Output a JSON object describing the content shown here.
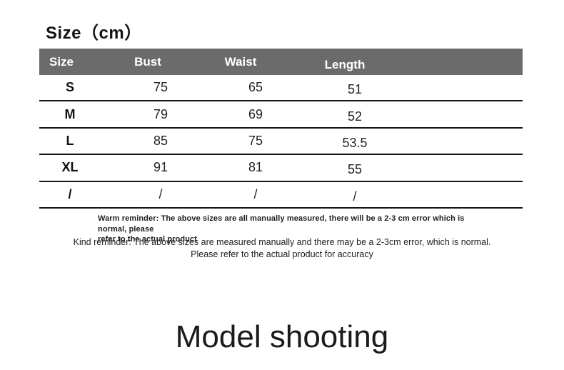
{
  "title": "Size（cm）",
  "table": {
    "header_bg": "#6b6b6b",
    "header_text_color": "#ffffff",
    "divider_color": "#151515",
    "columns": [
      "Size",
      "Bust",
      "Waist",
      "Length"
    ],
    "rows": [
      {
        "size": "S",
        "bust": "75",
        "waist": "65",
        "length": "51"
      },
      {
        "size": "M",
        "bust": "79",
        "waist": "69",
        "length": "52"
      },
      {
        "size": "L",
        "bust": "85",
        "waist": "75",
        "length": "53.5"
      },
      {
        "size": "XL",
        "bust": "91",
        "waist": "81",
        "length": "55"
      },
      {
        "size": "/",
        "bust": "/",
        "waist": "/",
        "length": "/"
      }
    ]
  },
  "notes": {
    "warm_line1": "Warm reminder: The above sizes are all manually measured, there will be a 2-3 cm error which is normal, please",
    "warm_line2": "refer to the actual product",
    "kind_line1": "Kind reminder: The above sizes are measured manually and there may be a 2-3cm error, which is normal.",
    "kind_line2": "Please refer to the actual product for accuracy"
  },
  "footer_heading": "Model shooting",
  "chart_data": {
    "type": "table",
    "title": "Size（cm）",
    "columns": [
      "Size",
      "Bust",
      "Waist",
      "Length"
    ],
    "rows": [
      [
        "S",
        75,
        65,
        51
      ],
      [
        "M",
        79,
        69,
        52
      ],
      [
        "L",
        85,
        75,
        53.5
      ],
      [
        "XL",
        91,
        81,
        55
      ],
      [
        "/",
        "/",
        "/",
        "/"
      ]
    ]
  }
}
